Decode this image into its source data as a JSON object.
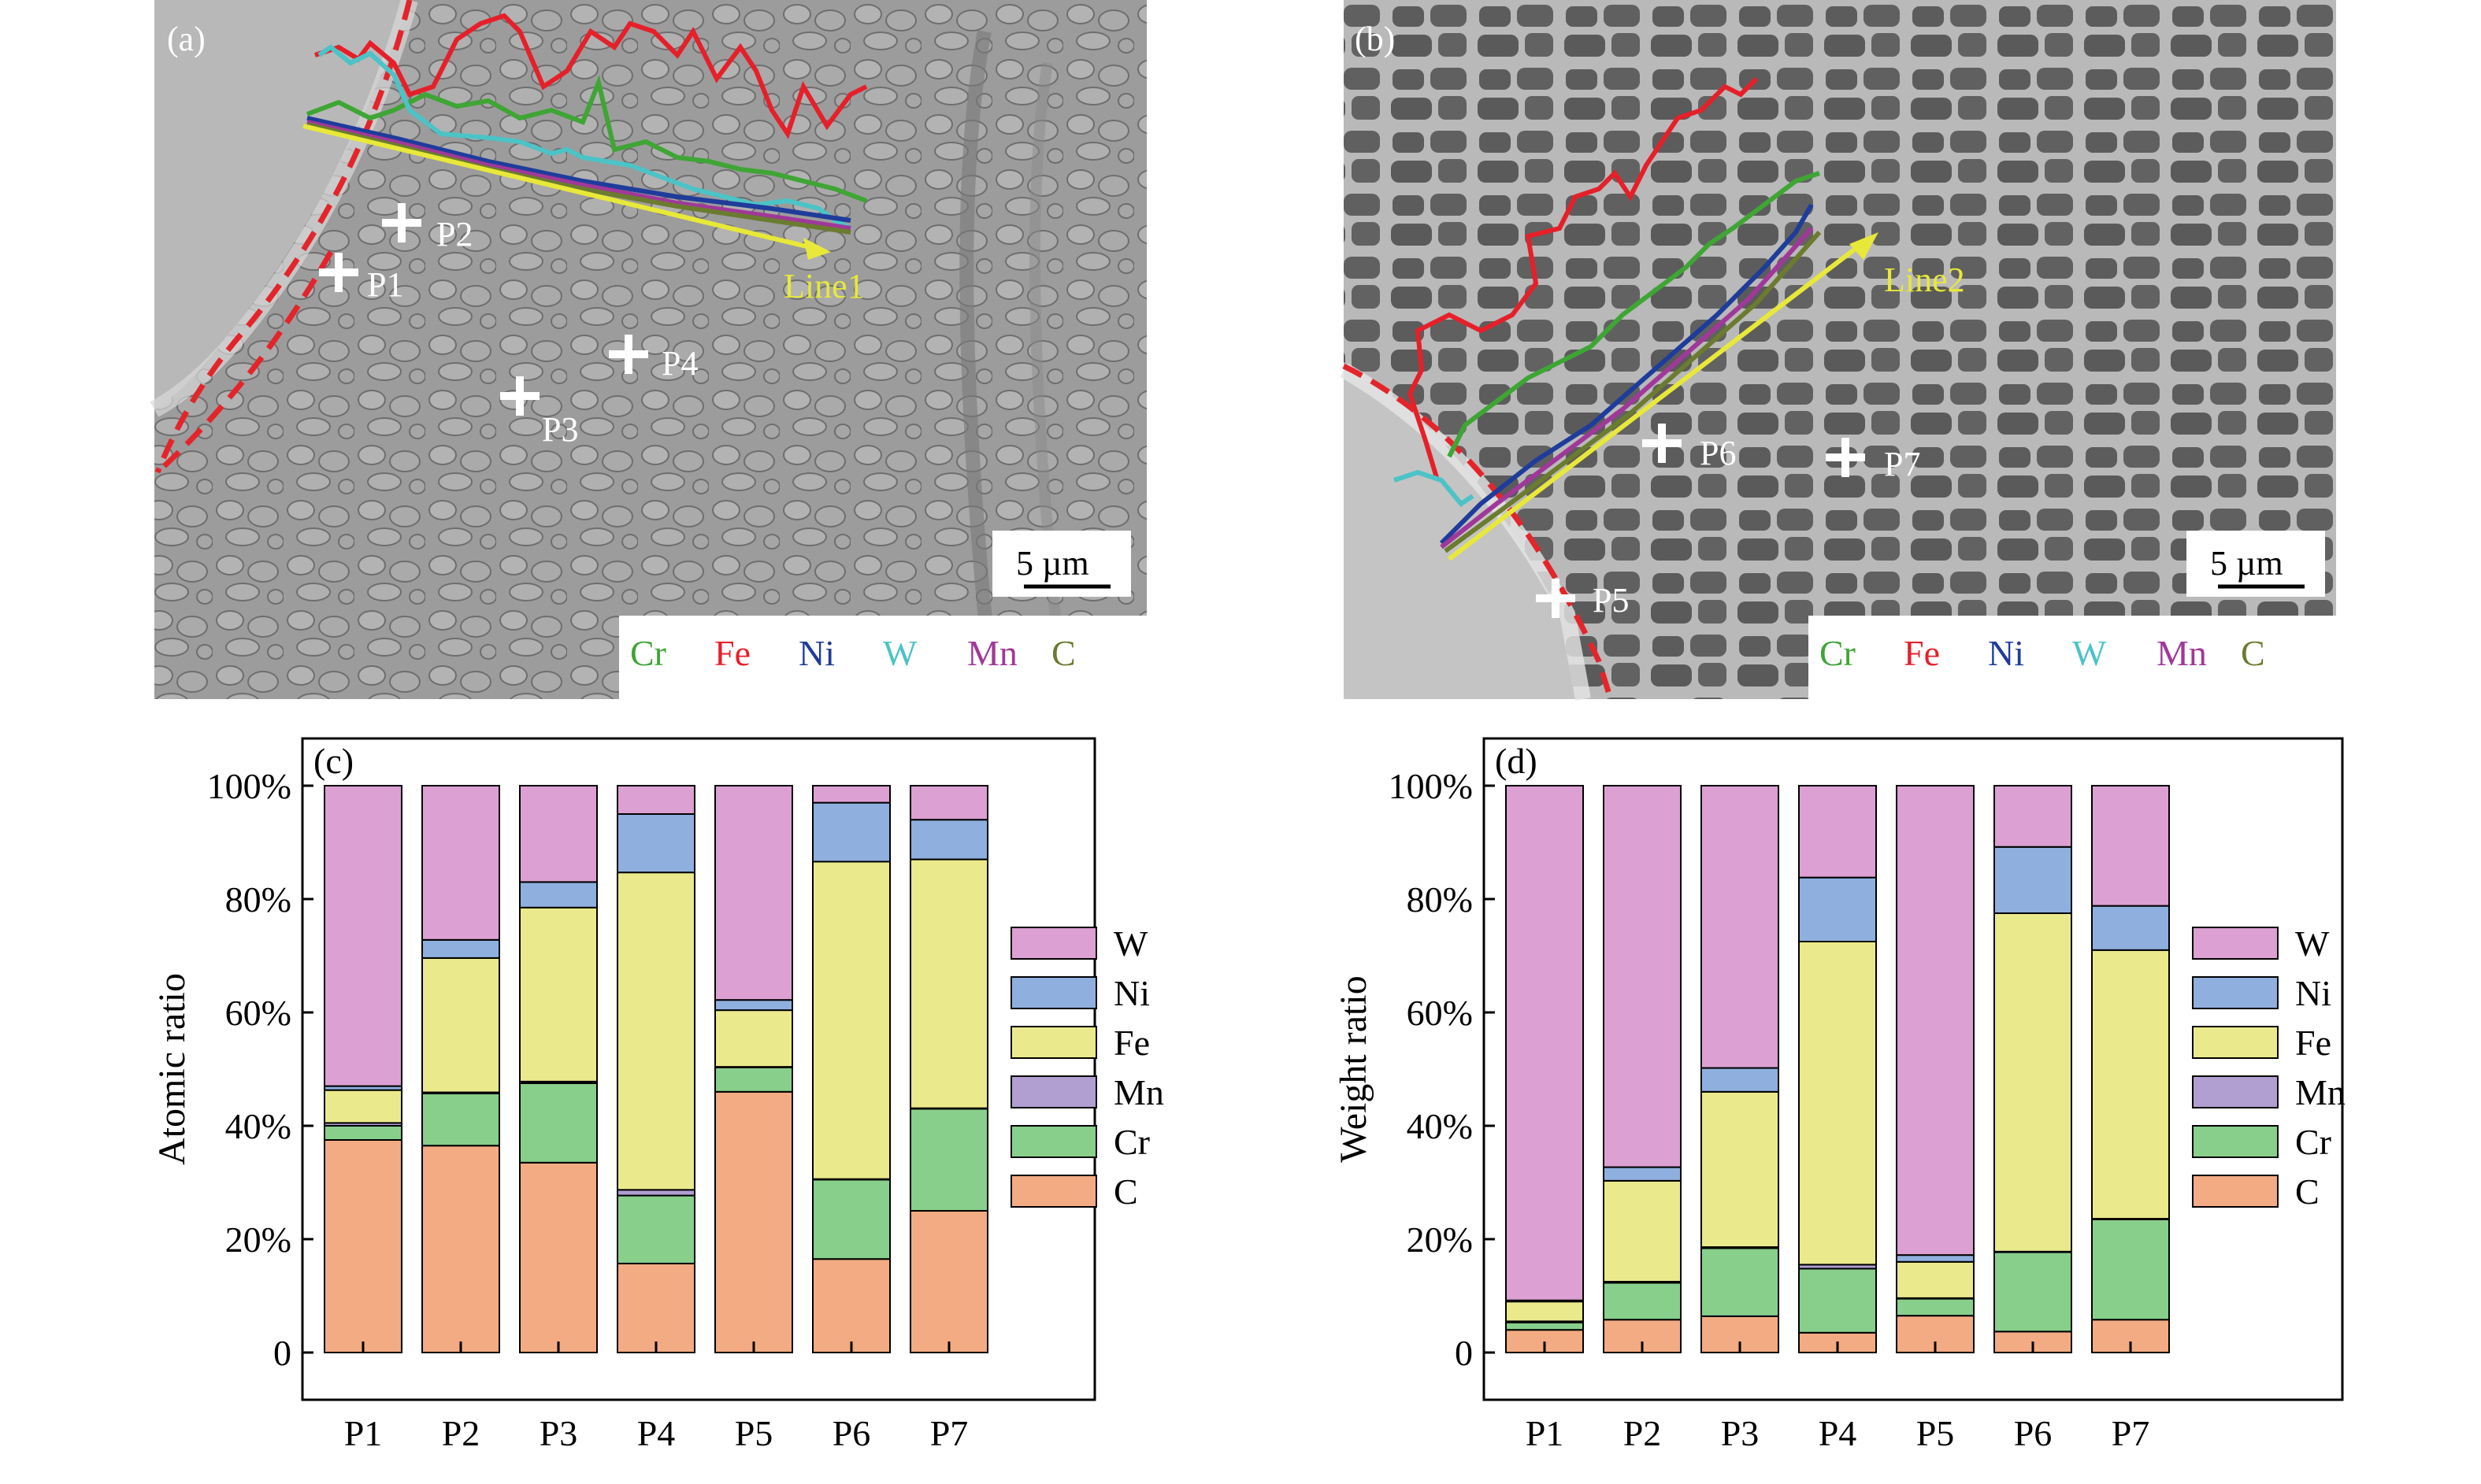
{
  "panels": {
    "a": {
      "label": "(a)",
      "line_label": "Line1",
      "points": [
        "P1",
        "P2",
        "P3",
        "P4"
      ],
      "scale_bar": "5 µm",
      "legend": [
        {
          "name": "Cr",
          "color": "#3fa535"
        },
        {
          "name": "Fe",
          "color": "#e5202a"
        },
        {
          "name": "Ni",
          "color": "#1f3c9b"
        },
        {
          "name": "W",
          "color": "#4cc3c6"
        },
        {
          "name": "Mn",
          "color": "#a0389a"
        },
        {
          "name": "C",
          "color": "#6b7b2f"
        }
      ]
    },
    "b": {
      "label": "(b)",
      "line_label": "Line2",
      "points": [
        "P5",
        "P6",
        "P7"
      ],
      "scale_bar": "5 µm",
      "legend": [
        {
          "name": "Cr",
          "color": "#3fa535"
        },
        {
          "name": "Fe",
          "color": "#e5202a"
        },
        {
          "name": "Ni",
          "color": "#1f3c9b"
        },
        {
          "name": "W",
          "color": "#4cc3c6"
        },
        {
          "name": "Mn",
          "color": "#a0389a"
        },
        {
          "name": "C",
          "color": "#6b7b2f"
        }
      ]
    }
  },
  "chart_data": [
    {
      "panel_label": "(c)",
      "type": "bar",
      "stacked": true,
      "ylabel": "Atomic ratio",
      "ylim": [
        0,
        100
      ],
      "yticks": [
        "0",
        "20%",
        "40%",
        "60%",
        "80%",
        "100%"
      ],
      "categories": [
        "P1",
        "P2",
        "P3",
        "P4",
        "P5",
        "P6",
        "P7"
      ],
      "legend_placement": "right",
      "series": [
        {
          "name": "C",
          "color": "#f2ab82",
          "values": [
            37.5,
            36.5,
            33.5,
            15.7,
            46.0,
            16.5,
            25.0
          ]
        },
        {
          "name": "Cr",
          "color": "#88cf8c",
          "values": [
            2.5,
            9.2,
            14.0,
            12.0,
            4.3,
            14.0,
            18.0
          ]
        },
        {
          "name": "Mn",
          "color": "#b19fd2",
          "values": [
            0.5,
            0.2,
            0.3,
            1.0,
            0.1,
            0.1,
            0.1
          ]
        },
        {
          "name": "Fe",
          "color": "#eaea8c",
          "values": [
            5.8,
            23.7,
            30.7,
            56.0,
            10.0,
            56.0,
            43.9
          ]
        },
        {
          "name": "Ni",
          "color": "#8fb0df",
          "values": [
            0.7,
            3.2,
            4.5,
            10.3,
            1.8,
            10.4,
            7.0
          ]
        },
        {
          "name": "W",
          "color": "#dca0d2",
          "values": [
            53.0,
            27.2,
            17.0,
            5.0,
            37.8,
            3.0,
            6.0
          ]
        }
      ]
    },
    {
      "panel_label": "(d)",
      "type": "bar",
      "stacked": true,
      "ylabel": "Weight ratio",
      "ylim": [
        0,
        100
      ],
      "yticks": [
        "0",
        "20%",
        "40%",
        "60%",
        "80%",
        "100%"
      ],
      "categories": [
        "P1",
        "P2",
        "P3",
        "P4",
        "P5",
        "P6",
        "P7"
      ],
      "legend_placement": "right",
      "series": [
        {
          "name": "C",
          "color": "#f2ab82",
          "values": [
            4.0,
            5.8,
            6.4,
            3.5,
            6.5,
            3.7,
            5.8
          ]
        },
        {
          "name": "Cr",
          "color": "#88cf8c",
          "values": [
            1.3,
            6.5,
            12.0,
            11.3,
            3.0,
            14.0,
            17.7
          ]
        },
        {
          "name": "Mn",
          "color": "#b19fd2",
          "values": [
            0.2,
            0.2,
            0.2,
            0.7,
            0.1,
            0.1,
            0.1
          ]
        },
        {
          "name": "Fe",
          "color": "#eaea8c",
          "values": [
            3.5,
            17.8,
            27.4,
            57.0,
            6.4,
            59.7,
            47.4
          ]
        },
        {
          "name": "Ni",
          "color": "#8fb0df",
          "values": [
            0.2,
            2.4,
            4.2,
            11.3,
            1.2,
            11.7,
            7.8
          ]
        },
        {
          "name": "W",
          "color": "#dca0d2",
          "values": [
            90.8,
            67.3,
            49.8,
            16.2,
            82.8,
            10.8,
            21.2
          ]
        }
      ]
    }
  ]
}
